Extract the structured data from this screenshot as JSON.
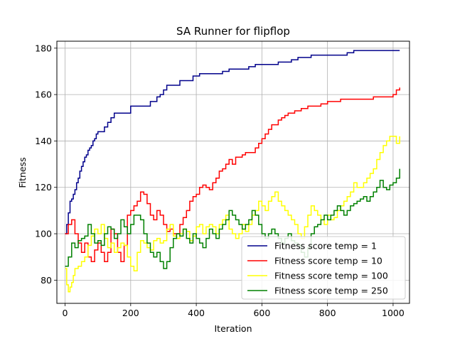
{
  "chart_data": {
    "type": "line",
    "title": "SA Runner for flipflop",
    "xlabel": "Iteration",
    "ylabel": "Fitness",
    "xlim": [
      -25,
      1050
    ],
    "ylim": [
      70,
      183
    ],
    "xticks": [
      0,
      200,
      400,
      600,
      800,
      1000
    ],
    "yticks": [
      80,
      100,
      120,
      140,
      160,
      180
    ],
    "grid": true,
    "legend_position": "lower-right",
    "series": [
      {
        "name": "Fitness score temp = 1",
        "color": "#00008b",
        "x": [
          0,
          5,
          10,
          15,
          20,
          25,
          30,
          35,
          40,
          45,
          50,
          55,
          60,
          65,
          70,
          75,
          80,
          85,
          90,
          95,
          100,
          110,
          120,
          130,
          140,
          150,
          160,
          180,
          200,
          230,
          260,
          280,
          290,
          300,
          310,
          350,
          390,
          410,
          450,
          480,
          500,
          560,
          580,
          600,
          650,
          690,
          710,
          750,
          790,
          860,
          880,
          1020
        ],
        "y": [
          100,
          104,
          109,
          114,
          115,
          117,
          119,
          122,
          124,
          127,
          129,
          131,
          133,
          134,
          136,
          137,
          138,
          140,
          141,
          143,
          144,
          144,
          146,
          148,
          150,
          152,
          152,
          152,
          155,
          155,
          157,
          159,
          160,
          162,
          164,
          166,
          168,
          169,
          169,
          170,
          171,
          172,
          173,
          173,
          174,
          175,
          176,
          177,
          177,
          178,
          179,
          179
        ]
      },
      {
        "name": "Fitness score temp = 10",
        "color": "#ff0000",
        "x": [
          0,
          10,
          20,
          30,
          40,
          50,
          60,
          70,
          80,
          90,
          100,
          110,
          120,
          130,
          140,
          150,
          160,
          170,
          180,
          190,
          200,
          210,
          220,
          230,
          240,
          250,
          260,
          270,
          280,
          290,
          300,
          310,
          320,
          330,
          340,
          350,
          360,
          370,
          380,
          390,
          400,
          410,
          420,
          430,
          440,
          450,
          460,
          470,
          480,
          490,
          500,
          510,
          520,
          530,
          540,
          550,
          560,
          570,
          580,
          590,
          600,
          610,
          620,
          630,
          640,
          650,
          660,
          670,
          680,
          700,
          720,
          740,
          760,
          780,
          800,
          820,
          840,
          860,
          880,
          900,
          920,
          940,
          960,
          980,
          1000,
          1010,
          1020
        ],
        "y": [
          100,
          104,
          106,
          100,
          96,
          92,
          96,
          90,
          88,
          93,
          96,
          92,
          88,
          92,
          102,
          100,
          92,
          88,
          95,
          108,
          110,
          112,
          114,
          118,
          117,
          113,
          108,
          106,
          110,
          108,
          104,
          101,
          102,
          100,
          100,
          104,
          107,
          110,
          114,
          116,
          117,
          120,
          121,
          120,
          119,
          122,
          124,
          127,
          128,
          130,
          132,
          130,
          133,
          133,
          134,
          135,
          135,
          135,
          137,
          139,
          141,
          143,
          145,
          147,
          147,
          149,
          150,
          151,
          152,
          153,
          154,
          155,
          155,
          156,
          157,
          157,
          158,
          158,
          158,
          158,
          158,
          159,
          159,
          159,
          160,
          162,
          163
        ]
      },
      {
        "name": "Fitness score temp = 100",
        "color": "#ffff00",
        "x": [
          0,
          5,
          10,
          15,
          20,
          25,
          30,
          40,
          50,
          60,
          70,
          80,
          90,
          100,
          110,
          120,
          130,
          140,
          150,
          160,
          170,
          180,
          190,
          200,
          210,
          220,
          230,
          240,
          250,
          260,
          270,
          280,
          290,
          300,
          310,
          320,
          330,
          340,
          350,
          360,
          370,
          380,
          390,
          400,
          410,
          420,
          430,
          440,
          450,
          460,
          470,
          480,
          490,
          500,
          510,
          520,
          530,
          540,
          550,
          560,
          570,
          580,
          590,
          600,
          610,
          620,
          630,
          640,
          650,
          660,
          670,
          680,
          690,
          700,
          710,
          720,
          730,
          740,
          750,
          760,
          770,
          780,
          790,
          800,
          810,
          820,
          830,
          840,
          850,
          860,
          870,
          880,
          890,
          900,
          910,
          920,
          930,
          940,
          950,
          960,
          970,
          980,
          990,
          1000,
          1010,
          1020
        ],
        "y": [
          85,
          78,
          75,
          77,
          79,
          82,
          85,
          86,
          88,
          90,
          95,
          99,
          102,
          100,
          104,
          98,
          94,
          96,
          92,
          94,
          96,
          95,
          90,
          86,
          84,
          92,
          97,
          96,
          94,
          93,
          97,
          98,
          96,
          97,
          102,
          104,
          99,
          98,
          100,
          102,
          101,
          97,
          99,
          103,
          104,
          100,
          103,
          104,
          103,
          100,
          104,
          106,
          108,
          102,
          100,
          98,
          100,
          104,
          101,
          104,
          108,
          110,
          114,
          112,
          110,
          114,
          116,
          118,
          114,
          112,
          110,
          108,
          106,
          104,
          100,
          98,
          103,
          108,
          112,
          110,
          108,
          106,
          104,
          108,
          106,
          107,
          110,
          112,
          114,
          116,
          118,
          122,
          120,
          120,
          122,
          124,
          126,
          128,
          132,
          135,
          138,
          140,
          142,
          142,
          139,
          142
        ]
      },
      {
        "name": "Fitness score temp = 250",
        "color": "#008000",
        "x": [
          0,
          10,
          20,
          30,
          40,
          50,
          60,
          70,
          80,
          90,
          100,
          110,
          120,
          130,
          140,
          150,
          160,
          170,
          180,
          190,
          200,
          210,
          220,
          230,
          240,
          250,
          260,
          270,
          280,
          290,
          300,
          310,
          320,
          330,
          340,
          350,
          360,
          370,
          380,
          390,
          400,
          410,
          420,
          430,
          440,
          450,
          460,
          470,
          480,
          490,
          500,
          510,
          520,
          530,
          540,
          550,
          560,
          570,
          580,
          590,
          600,
          610,
          620,
          630,
          640,
          650,
          660,
          670,
          680,
          690,
          700,
          710,
          720,
          730,
          740,
          750,
          760,
          770,
          780,
          790,
          800,
          810,
          820,
          830,
          840,
          850,
          860,
          870,
          880,
          890,
          900,
          910,
          920,
          930,
          940,
          950,
          960,
          970,
          980,
          990,
          1000,
          1010,
          1020
        ],
        "y": [
          86,
          90,
          96,
          94,
          97,
          98,
          99,
          104,
          100,
          96,
          97,
          95,
          100,
          103,
          102,
          98,
          100,
          106,
          103,
          100,
          104,
          108,
          108,
          106,
          100,
          96,
          92,
          90,
          92,
          88,
          85,
          88,
          94,
          98,
          100,
          99,
          102,
          98,
          96,
          100,
          98,
          96,
          94,
          98,
          102,
          100,
          98,
          102,
          104,
          106,
          110,
          108,
          106,
          104,
          102,
          104,
          106,
          110,
          108,
          104,
          100,
          98,
          100,
          102,
          100,
          98,
          96,
          98,
          100,
          97,
          96,
          95,
          92,
          90,
          94,
          100,
          103,
          104,
          106,
          108,
          106,
          108,
          110,
          112,
          110,
          108,
          110,
          112,
          113,
          114,
          115,
          116,
          114,
          116,
          118,
          120,
          123,
          120,
          119,
          121,
          122,
          124,
          128
        ]
      }
    ]
  }
}
